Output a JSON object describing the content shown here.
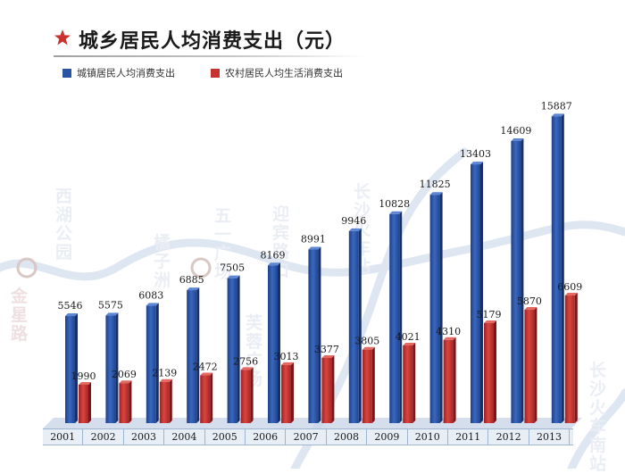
{
  "title": "城乡居民人均消费支出（元）",
  "legend": [
    {
      "label": "城镇居民人均消费支出",
      "color": "#2a55a4"
    },
    {
      "label": "农村居民人均生活消费支出",
      "color": "#c8322f"
    }
  ],
  "background_map_labels": [
    "西湖公园",
    "五一广场",
    "迎宾路口",
    "长沙火车站",
    "橘子洲",
    "芙蓉广场",
    "长沙火车南站",
    "金星路"
  ],
  "chart_data": {
    "type": "bar",
    "categories": [
      "2001",
      "2002",
      "2003",
      "2004",
      "2005",
      "2006",
      "2007",
      "2008",
      "2009",
      "2010",
      "2011",
      "2012",
      "2013"
    ],
    "series": [
      {
        "name": "城镇居民人均消费支出",
        "values": [
          5546,
          5575,
          6083,
          6885,
          7505,
          8169,
          8991,
          9946,
          10828,
          11825,
          13403,
          14609,
          15887
        ]
      },
      {
        "name": "农村居民人均生活消费支出",
        "values": [
          1990,
          2069,
          2139,
          2472,
          2756,
          3013,
          3377,
          3805,
          4021,
          4310,
          5179,
          5870,
          6609
        ]
      }
    ],
    "title": "城乡居民人均消费支出（元）",
    "xlabel": "",
    "ylabel": "",
    "ylim": [
      0,
      16000
    ],
    "grid": false,
    "legend_position": "top-left",
    "colors": {
      "urban": "#2a55a4",
      "rural": "#c8322f"
    }
  }
}
